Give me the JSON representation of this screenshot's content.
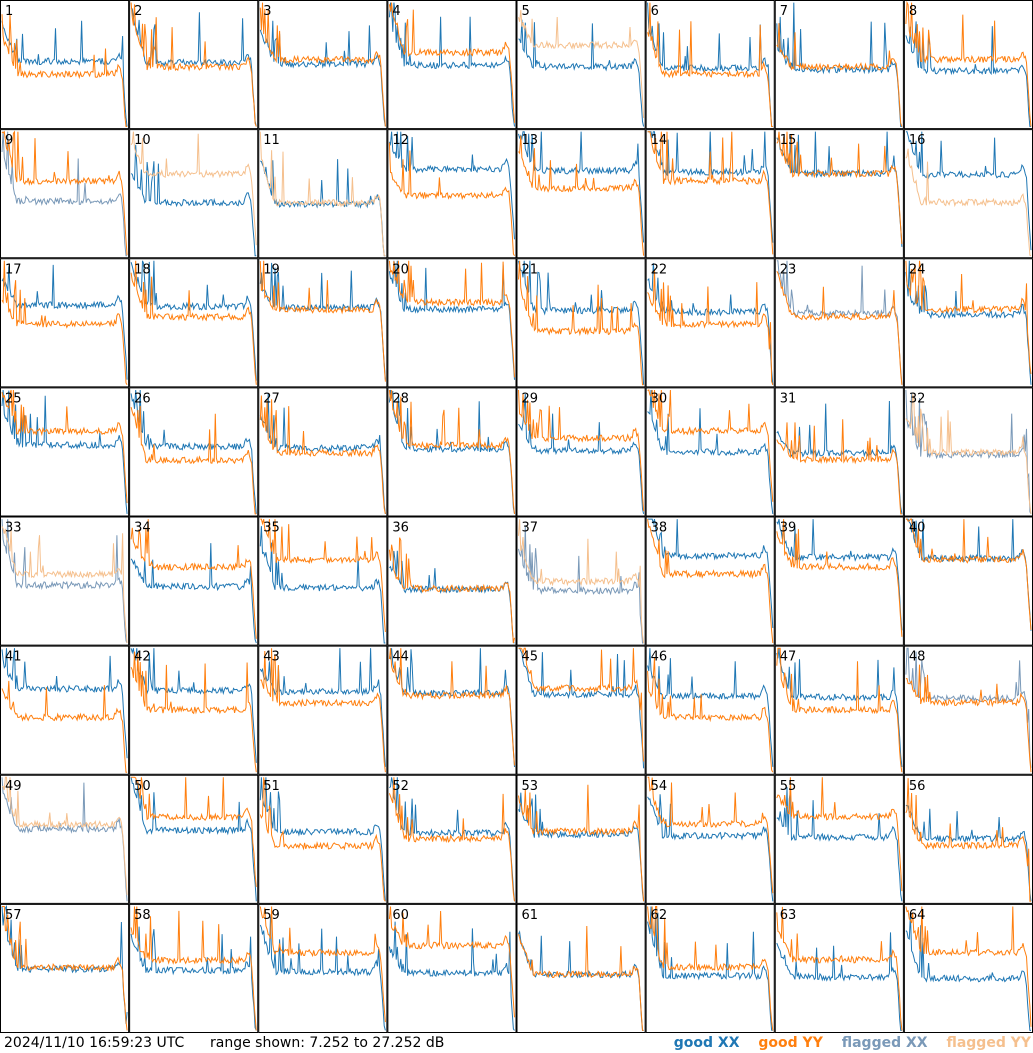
{
  "footer": {
    "timestamp": "2024/11/10 16:59:23 UTC",
    "range": "range shown: 7.252 to 27.252 dB"
  },
  "legend": {
    "good_xx": "good XX",
    "good_yy": "good YY",
    "flagged_xx": "flagged XX",
    "flagged_yy": "flagged YY"
  },
  "colors": {
    "good_xx": "#1f77b4",
    "good_yy": "#ff7f0e",
    "flagged_xx": "#7a99b8",
    "flagged_yy": "#f5c08e"
  },
  "chart_data": {
    "type": "line",
    "grid": "8x8 small multiples",
    "ylim_db": [
      7.252,
      27.252
    ],
    "panels": [
      {
        "id": "1",
        "xx": "good",
        "yy": "good"
      },
      {
        "id": "2",
        "xx": "good",
        "yy": "good"
      },
      {
        "id": "3",
        "xx": "good",
        "yy": "good"
      },
      {
        "id": "4",
        "xx": "good",
        "yy": "good"
      },
      {
        "id": "5",
        "xx": "good",
        "yy": "flagged"
      },
      {
        "id": "6",
        "xx": "good",
        "yy": "good"
      },
      {
        "id": "7",
        "xx": "good",
        "yy": "good"
      },
      {
        "id": "8",
        "xx": "good",
        "yy": "good"
      },
      {
        "id": "9",
        "xx": "flagged",
        "yy": "good"
      },
      {
        "id": "10",
        "xx": "good",
        "yy": "flagged"
      },
      {
        "id": "11",
        "xx": "good",
        "yy": "flagged"
      },
      {
        "id": "12",
        "xx": "good",
        "yy": "good"
      },
      {
        "id": "13",
        "xx": "good",
        "yy": "good"
      },
      {
        "id": "14",
        "xx": "good",
        "yy": "good"
      },
      {
        "id": "15",
        "xx": "good",
        "yy": "good"
      },
      {
        "id": "16",
        "xx": "good",
        "yy": "flagged"
      },
      {
        "id": "17",
        "xx": "good",
        "yy": "good"
      },
      {
        "id": "18",
        "xx": "good",
        "yy": "good"
      },
      {
        "id": "19",
        "xx": "good",
        "yy": "good"
      },
      {
        "id": "20",
        "xx": "good",
        "yy": "good"
      },
      {
        "id": "21",
        "xx": "good",
        "yy": "good"
      },
      {
        "id": "22",
        "xx": "good",
        "yy": "good"
      },
      {
        "id": "23",
        "xx": "flagged",
        "yy": "good"
      },
      {
        "id": "24",
        "xx": "good",
        "yy": "good"
      },
      {
        "id": "25",
        "xx": "good",
        "yy": "good"
      },
      {
        "id": "26",
        "xx": "good",
        "yy": "good"
      },
      {
        "id": "27",
        "xx": "good",
        "yy": "good"
      },
      {
        "id": "28",
        "xx": "good",
        "yy": "good"
      },
      {
        "id": "29",
        "xx": "good",
        "yy": "good"
      },
      {
        "id": "30",
        "xx": "good",
        "yy": "good"
      },
      {
        "id": "31",
        "xx": "good",
        "yy": "good"
      },
      {
        "id": "32",
        "xx": "flagged",
        "yy": "flagged"
      },
      {
        "id": "33",
        "xx": "flagged",
        "yy": "flagged"
      },
      {
        "id": "34",
        "xx": "good",
        "yy": "good"
      },
      {
        "id": "35",
        "xx": "good",
        "yy": "good"
      },
      {
        "id": "36",
        "xx": "good",
        "yy": "good"
      },
      {
        "id": "37",
        "xx": "flagged",
        "yy": "flagged"
      },
      {
        "id": "38",
        "xx": "good",
        "yy": "good"
      },
      {
        "id": "39",
        "xx": "good",
        "yy": "good"
      },
      {
        "id": "40",
        "xx": "good",
        "yy": "good"
      },
      {
        "id": "41",
        "xx": "good",
        "yy": "good"
      },
      {
        "id": "42",
        "xx": "good",
        "yy": "good"
      },
      {
        "id": "43",
        "xx": "good",
        "yy": "good"
      },
      {
        "id": "44",
        "xx": "good",
        "yy": "good"
      },
      {
        "id": "45",
        "xx": "good",
        "yy": "good"
      },
      {
        "id": "46",
        "xx": "good",
        "yy": "good"
      },
      {
        "id": "47",
        "xx": "good",
        "yy": "good"
      },
      {
        "id": "48",
        "xx": "flagged",
        "yy": "good"
      },
      {
        "id": "49",
        "xx": "flagged",
        "yy": "flagged"
      },
      {
        "id": "50",
        "xx": "good",
        "yy": "good"
      },
      {
        "id": "51",
        "xx": "good",
        "yy": "good"
      },
      {
        "id": "52",
        "xx": "good",
        "yy": "good"
      },
      {
        "id": "53",
        "xx": "good",
        "yy": "good"
      },
      {
        "id": "54",
        "xx": "good",
        "yy": "good"
      },
      {
        "id": "55",
        "xx": "good",
        "yy": "good"
      },
      {
        "id": "56",
        "xx": "good",
        "yy": "good"
      },
      {
        "id": "57",
        "xx": "good",
        "yy": "good"
      },
      {
        "id": "58",
        "xx": "good",
        "yy": "good"
      },
      {
        "id": "59",
        "xx": "good",
        "yy": "good"
      },
      {
        "id": "60",
        "xx": "good",
        "yy": "good"
      },
      {
        "id": "61",
        "xx": "good",
        "yy": "good"
      },
      {
        "id": "62",
        "xx": "good",
        "yy": "good"
      },
      {
        "id": "63",
        "xx": "good",
        "yy": "good"
      },
      {
        "id": "64",
        "xx": "good",
        "yy": "good"
      }
    ]
  }
}
